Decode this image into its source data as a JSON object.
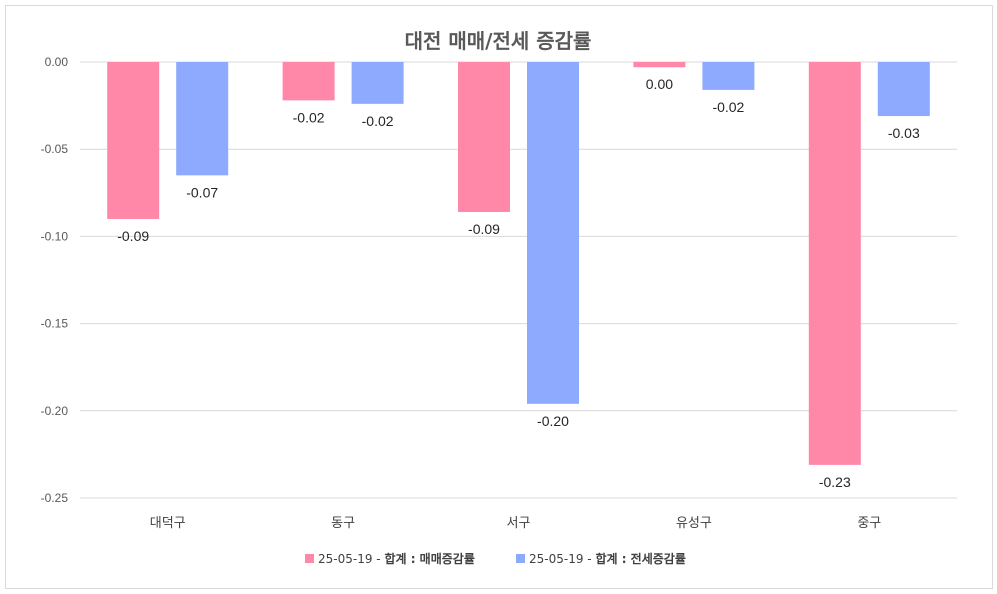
{
  "chart_data": {
    "type": "bar",
    "title": "대전 매매/전세 증감률",
    "categories": [
      "대덕구",
      "동구",
      "서구",
      "유성구",
      "중구"
    ],
    "series": [
      {
        "name_prefix": "25-05-19 - ",
        "name_bold": "합계",
        "name_suffix": " : 매매증감률",
        "name": "25-05-19 - 합계 : 매매증감률",
        "color": "#ff88a8",
        "values": [
          -0.09,
          -0.022,
          -0.086,
          -0.003,
          -0.231
        ],
        "labels": [
          "-0.09",
          "-0.02",
          "-0.09",
          "0.00",
          "-0.23"
        ]
      },
      {
        "name_prefix": "25-05-19 - ",
        "name_bold": "합계",
        "name_suffix": " : 전세증감률",
        "name": "25-05-19 - 합계 : 전세증감률",
        "color": "#8eaaff",
        "values": [
          -0.065,
          -0.024,
          -0.196,
          -0.016,
          -0.031
        ],
        "labels": [
          "-0.07",
          "-0.02",
          "-0.20",
          "-0.02",
          "-0.03"
        ]
      }
    ],
    "ylim": [
      -0.25,
      0
    ],
    "yticks": [
      "0.00",
      "-0.05",
      "-0.10",
      "-0.15",
      "-0.20",
      "-0.25"
    ],
    "ytick_values": [
      0,
      -0.05,
      -0.1,
      -0.15,
      -0.2,
      -0.25
    ],
    "grid": true,
    "legend": "bottom",
    "xlabel": "",
    "ylabel": ""
  }
}
